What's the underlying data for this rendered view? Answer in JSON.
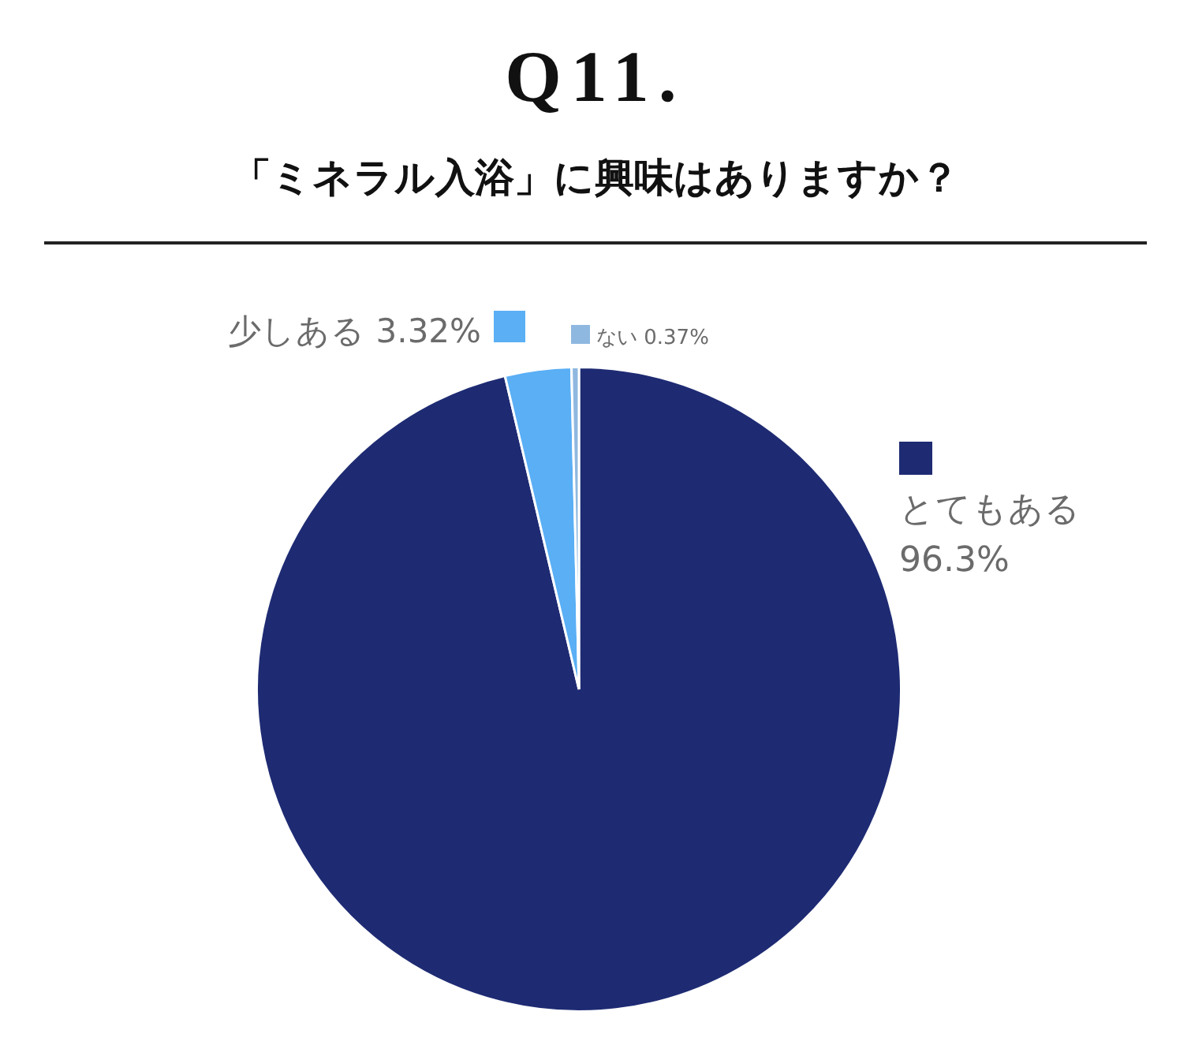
{
  "chart_data": {
    "type": "pie",
    "title": "Q11.",
    "subtitle": "「ミネラル入浴」に興味はありますか？",
    "categories": [
      "とてもある",
      "少しある",
      "ない"
    ],
    "values": [
      96.3,
      3.32,
      0.37
    ],
    "value_labels": [
      "96.3%",
      "3.32%",
      "0.37%"
    ],
    "colors": [
      "#1e2b73",
      "#5aaff5",
      "#8fb8e0"
    ]
  }
}
